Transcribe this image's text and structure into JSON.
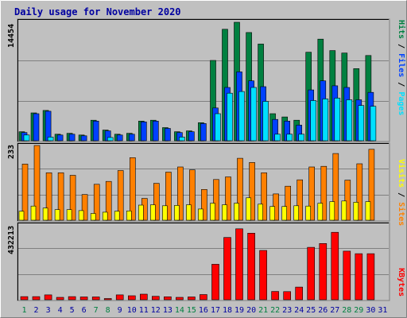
{
  "title": "Daily usage for November 2020",
  "colors": {
    "frame_bg": "#c0c0c0",
    "plot_bg": "#c0c0c0",
    "title": "#0000a0",
    "hits": "#008040",
    "files": "#0040ff",
    "pages": "#00e0ff",
    "visits": "#ff8000",
    "sites": "#ffff00",
    "kbytes": "#ff0000",
    "weekend_label": "#008040",
    "weekday_label": "#0000a0",
    "grid": "#808080"
  },
  "chart_data": [
    {
      "type": "bar",
      "panel": "hits-files-pages",
      "categories": [
        "1",
        "2",
        "3",
        "4",
        "5",
        "6",
        "7",
        "8",
        "9",
        "10",
        "11",
        "12",
        "13",
        "14",
        "15",
        "16",
        "17",
        "18",
        "19",
        "20",
        "21",
        "22",
        "23",
        "24",
        "25",
        "26",
        "27",
        "28",
        "29",
        "30",
        "31"
      ],
      "weekend_days": [
        "1",
        "7",
        "8",
        "14",
        "15",
        "21",
        "22",
        "28",
        "29"
      ],
      "ylabel_parts": [
        "Pages",
        "Files",
        "Hits"
      ],
      "ymax_label": "14454",
      "ylim": [
        0,
        14454
      ],
      "series": [
        {
          "name": "Hits",
          "values": [
            1100,
            3400,
            3700,
            800,
            900,
            700,
            2500,
            1300,
            800,
            900,
            2400,
            2500,
            1600,
            1100,
            1200,
            2200,
            9800,
            13600,
            14454,
            13200,
            11800,
            3300,
            2900,
            2500,
            10800,
            12400,
            11000,
            10700,
            8800,
            10400,
            null
          ]
        },
        {
          "name": "Files",
          "values": [
            1000,
            3300,
            3600,
            700,
            800,
            600,
            2400,
            1200,
            700,
            800,
            2300,
            2400,
            1500,
            1000,
            1100,
            2100,
            4000,
            6500,
            8400,
            7300,
            6600,
            2600,
            2400,
            1900,
            6200,
            7300,
            6700,
            6500,
            5000,
            5900,
            null
          ]
        },
        {
          "name": "Pages",
          "values": [
            700,
            null,
            450,
            null,
            null,
            null,
            null,
            400,
            null,
            null,
            null,
            null,
            null,
            450,
            null,
            null,
            3300,
            5800,
            6000,
            6500,
            4800,
            800,
            800,
            800,
            4900,
            5100,
            5200,
            5000,
            4300,
            4200,
            null
          ]
        }
      ]
    },
    {
      "type": "bar",
      "panel": "visits-sites",
      "categories": [
        "1",
        "2",
        "3",
        "4",
        "5",
        "6",
        "7",
        "8",
        "9",
        "10",
        "11",
        "12",
        "13",
        "14",
        "15",
        "16",
        "17",
        "18",
        "19",
        "20",
        "21",
        "22",
        "23",
        "24",
        "25",
        "26",
        "27",
        "28",
        "29",
        "30",
        "31"
      ],
      "ylabel_parts": [
        "Sites",
        "Visits"
      ],
      "ymax_label": "233",
      "ylim": [
        0,
        233
      ],
      "series": [
        {
          "name": "Visits",
          "values": [
            175,
            233,
            148,
            148,
            140,
            80,
            112,
            121,
            155,
            195,
            68,
            115,
            150,
            166,
            157,
            96,
            127,
            135,
            193,
            180,
            148,
            82,
            106,
            126,
            166,
            168,
            208,
            125,
            176,
            221,
            null
          ]
        },
        {
          "name": "Sites",
          "values": [
            28,
            44,
            38,
            33,
            33,
            30,
            21,
            25,
            28,
            29,
            47,
            48,
            45,
            46,
            48,
            35,
            53,
            48,
            53,
            70,
            50,
            43,
            43,
            45,
            44,
            53,
            58,
            60,
            56,
            58,
            null
          ]
        }
      ]
    },
    {
      "type": "bar",
      "panel": "kbytes",
      "categories": [
        "1",
        "2",
        "3",
        "4",
        "5",
        "6",
        "7",
        "8",
        "9",
        "10",
        "11",
        "12",
        "13",
        "14",
        "15",
        "16",
        "17",
        "18",
        "19",
        "20",
        "21",
        "22",
        "23",
        "24",
        "25",
        "26",
        "27",
        "28",
        "29",
        "30",
        "31"
      ],
      "ylabel_parts": [
        "KBytes"
      ],
      "ymax_label": "432213",
      "ylim": [
        0,
        432213
      ],
      "series": [
        {
          "name": "KBytes",
          "values": [
            18000,
            18000,
            28000,
            14000,
            18000,
            16000,
            16000,
            7000,
            28000,
            23000,
            32000,
            20000,
            17000,
            14000,
            16000,
            30000,
            205000,
            360000,
            410000,
            385000,
            285000,
            48000,
            47000,
            73000,
            303000,
            325000,
            390000,
            281000,
            266000,
            266000,
            null
          ]
        }
      ]
    }
  ]
}
